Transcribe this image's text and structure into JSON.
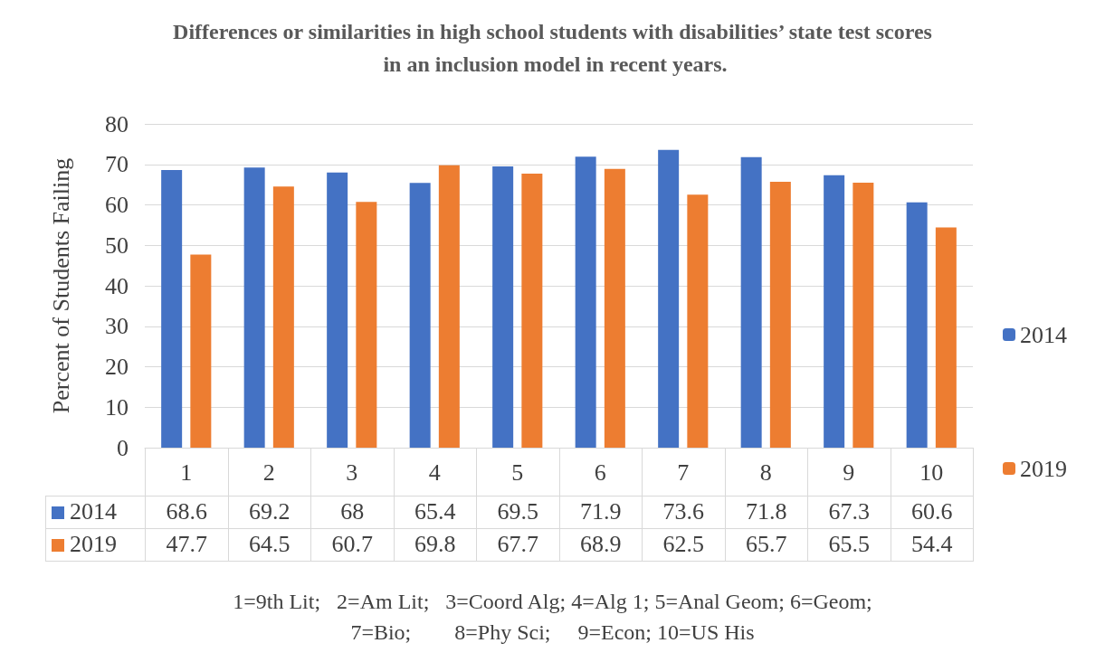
{
  "chart_data": {
    "type": "bar",
    "title": "Differences or similarities in high school students with disabilities’ state test scores in an inclusion model in recent years.",
    "ylabel": "Percent of Students Failing",
    "categories": [
      "1",
      "2",
      "3",
      "4",
      "5",
      "6",
      "7",
      "8",
      "9",
      "10"
    ],
    "series": [
      {
        "name": "2014",
        "color": "#4472c4",
        "values": [
          68.6,
          69.2,
          68,
          65.4,
          69.5,
          71.9,
          73.6,
          71.8,
          67.3,
          60.6
        ]
      },
      {
        "name": "2019",
        "color": "#ed7d31",
        "values": [
          47.7,
          64.5,
          60.7,
          69.8,
          67.7,
          68.9,
          62.5,
          65.7,
          65.5,
          54.4
        ]
      }
    ],
    "ylim": [
      0,
      80
    ],
    "yticks": [
      0,
      10,
      20,
      30,
      40,
      50,
      60,
      70,
      80
    ],
    "grid": "y",
    "legend": "right",
    "data_labels": true,
    "annotations": [
      "1=9th Lit;   2=Am Lit;   3=Coord Alg; 4=Alg 1; 5=Anal Geom; 6=Geom;",
      "7=Bio;        8=Phy Sci;     9=Econ; 10=US His"
    ]
  }
}
